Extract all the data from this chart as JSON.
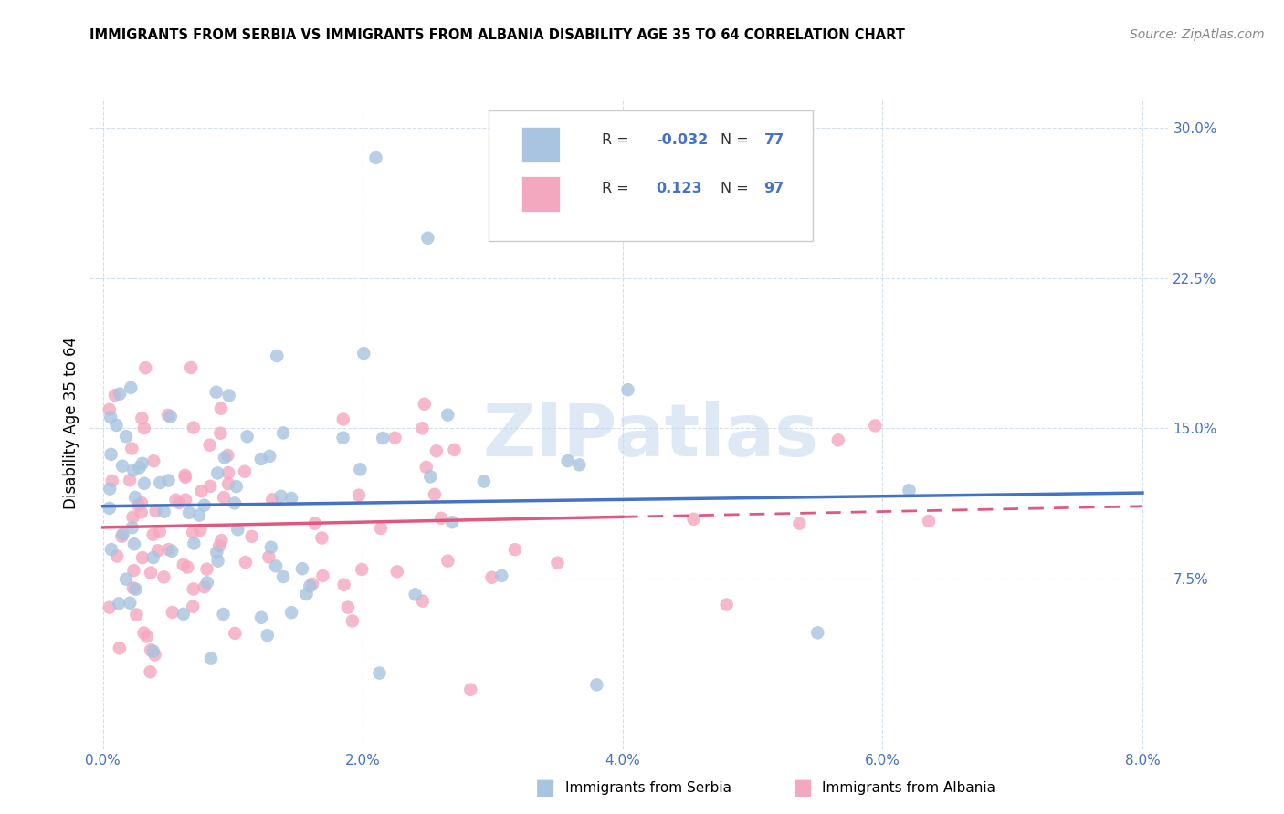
{
  "title": "IMMIGRANTS FROM SERBIA VS IMMIGRANTS FROM ALBANIA DISABILITY AGE 35 TO 64 CORRELATION CHART",
  "source": "Source: ZipAtlas.com",
  "ylabel": "Disability Age 35 to 64",
  "ytick_labels": [
    "7.5%",
    "15.0%",
    "22.5%",
    "30.0%"
  ],
  "ytick_values": [
    0.075,
    0.15,
    0.225,
    0.3
  ],
  "xtick_labels": [
    "0.0%",
    "2.0%",
    "4.0%",
    "6.0%",
    "8.0%"
  ],
  "xtick_values": [
    0.0,
    0.02,
    0.04,
    0.06,
    0.08
  ],
  "xlim": [
    -0.001,
    0.082
  ],
  "ylim": [
    -0.01,
    0.315
  ],
  "legend_serbia_R": "-0.032",
  "legend_serbia_N": "77",
  "legend_albania_R": "0.123",
  "legend_albania_N": "97",
  "serbia_color": "#a8c4e0",
  "albania_color": "#f4a8c0",
  "serbia_line_color": "#4472c4",
  "albania_line_color": "#e05880",
  "watermark_text": "ZIPatlas",
  "serbia_seed": 101,
  "albania_seed": 202,
  "serbia_N": 77,
  "albania_N": 97,
  "serbia_R": -0.032,
  "albania_R": 0.123,
  "bottom_legend_items": [
    "Immigrants from Serbia",
    "Immigrants from Albania"
  ]
}
